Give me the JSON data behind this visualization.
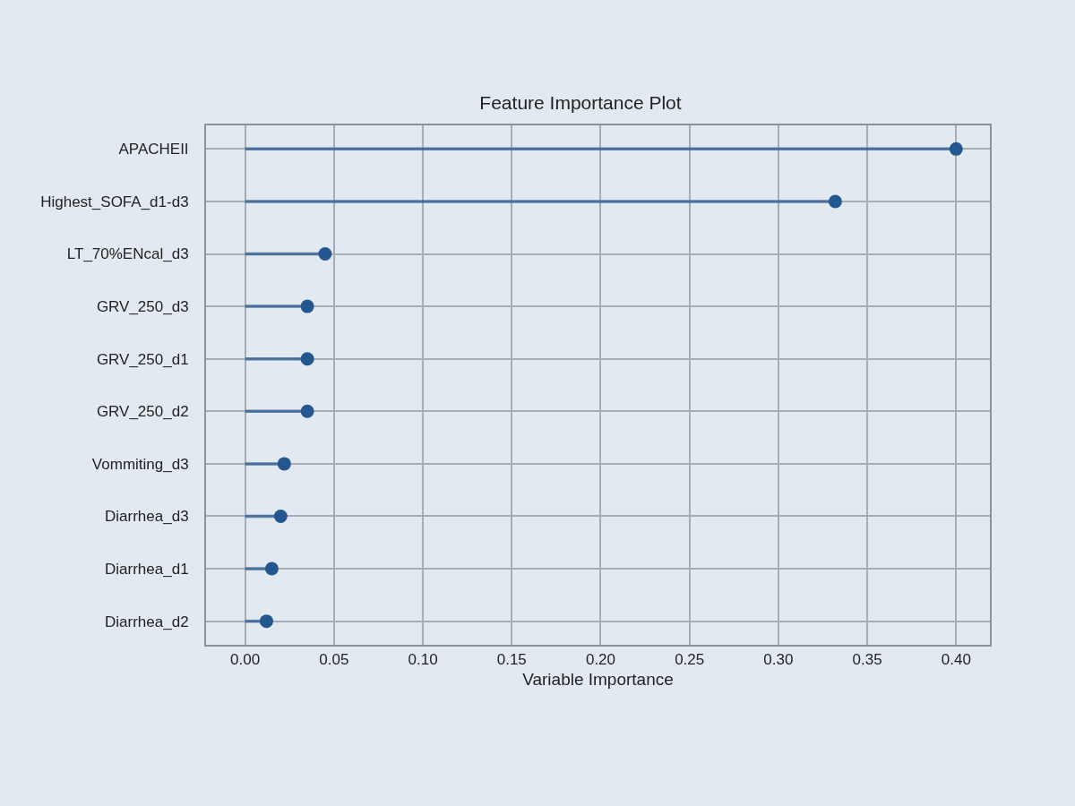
{
  "chart_data": {
    "type": "lollipop",
    "orientation": "horizontal",
    "title": "Feature Importance Plot",
    "xlabel": "Variable Importance",
    "categories": [
      "APACHEII",
      "Highest_SOFA_d1-d3",
      "LT_70%ENcal_d3",
      "GRV_250_d3",
      "GRV_250_d1",
      "GRV_250_d2",
      "Vommiting_d3",
      "Diarrhea_d3",
      "Diarrhea_d1",
      "Diarrhea_d2"
    ],
    "values": [
      0.4,
      0.332,
      0.045,
      0.035,
      0.035,
      0.035,
      0.022,
      0.02,
      0.015,
      0.012
    ],
    "color": "#24578f",
    "marker": "circle",
    "grid": true,
    "xlim": [
      -0.022,
      0.419
    ],
    "xticks": [
      {
        "value": 0,
        "label": "0.00"
      },
      {
        "value": 0.05,
        "label": "0.05"
      },
      {
        "value": 0.1,
        "label": "0.10"
      },
      {
        "value": 0.15,
        "label": "0.15"
      },
      {
        "value": 0.2,
        "label": "0.20"
      },
      {
        "value": 0.25,
        "label": "0.25"
      },
      {
        "value": 0.3,
        "label": "0.30"
      },
      {
        "value": 0.35,
        "label": "0.35"
      },
      {
        "value": 0.4,
        "label": "0.40"
      }
    ]
  }
}
